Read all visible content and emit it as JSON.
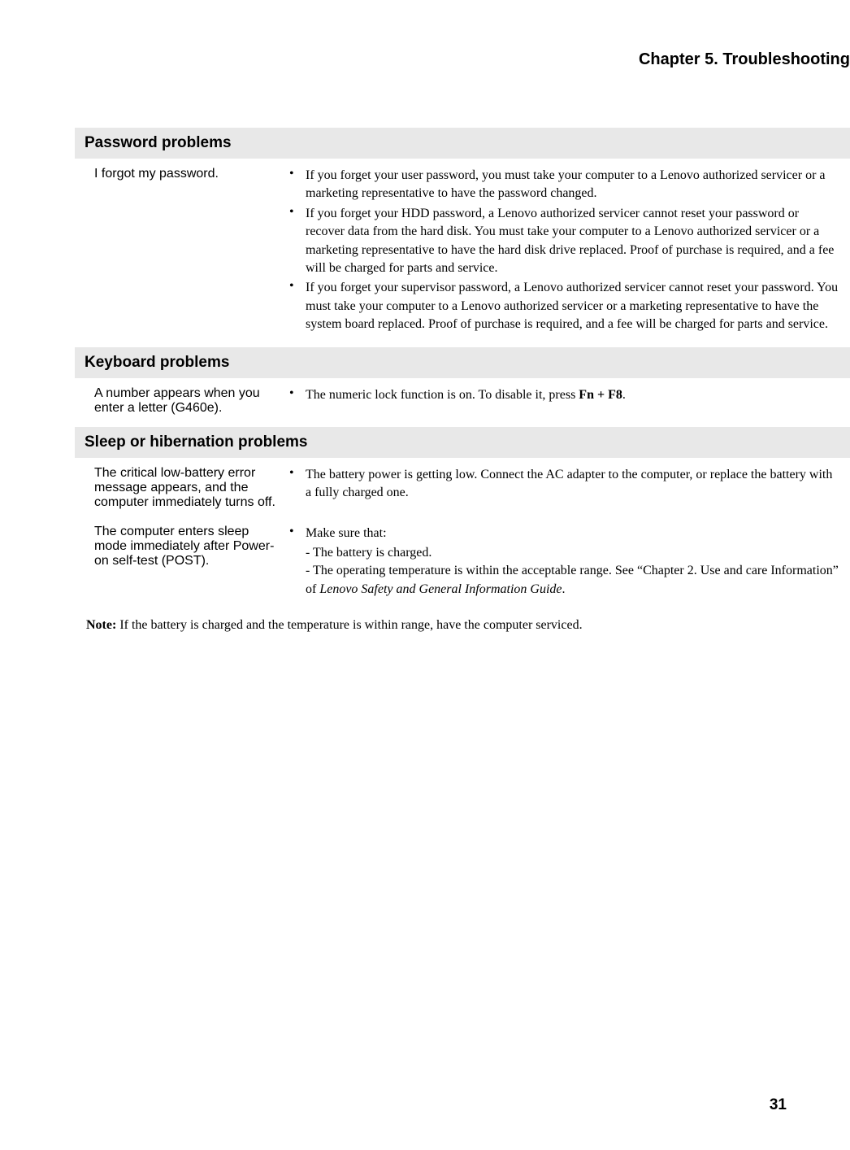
{
  "typography": {
    "chapter_fontsize": 20,
    "section_fontsize": 19,
    "left_fontsize": 16,
    "body_fontsize": 16,
    "pagenum_fontsize": 19,
    "section_bg": "#e8e8e8",
    "text_color": "#000000"
  },
  "chapter": "Chapter 5. Troubleshooting",
  "sections": [
    {
      "title": "Password problems",
      "rows": [
        {
          "left": "I forgot my password.",
          "bullets": [
            {
              "text": "If you forget your user password, you must take your computer to a Lenovo authorized servicer or a marketing representative to have the password changed."
            },
            {
              "text": "If you forget your HDD password, a Lenovo authorized servicer cannot reset your password or recover data from the hard disk. You must take your computer to a Lenovo authorized servicer or a marketing representative to have the hard disk drive replaced. Proof of purchase is required, and a fee will be charged for parts and service."
            },
            {
              "text": "If you forget your supervisor password, a Lenovo authorized servicer cannot reset your password. You must take your computer to a Lenovo authorized servicer or a marketing representative to have the system board replaced. Proof of purchase is required, and a fee will be charged for parts and service."
            }
          ]
        }
      ]
    },
    {
      "title": "Keyboard problems",
      "rows": [
        {
          "left": "A number appears when you enter a letter (G460e).",
          "bullets": [
            {
              "html": "The numeric lock function is on. To disable it, press <span class=\"bold\">Fn + F8</span>."
            }
          ]
        }
      ]
    },
    {
      "title": "Sleep or hibernation problems",
      "rows": [
        {
          "left": "The critical low-battery error message appears, and the computer immediately turns off.",
          "bullets": [
            {
              "text": "The battery power is getting low. Connect the AC adapter to the computer, or replace the battery with a fully charged one."
            }
          ]
        },
        {
          "left": "The computer enters sleep mode immediately after Power-on self-test (POST).",
          "bullets": [
            {
              "text": "Make sure that:",
              "subs": [
                {
                  "text": "- The battery is charged."
                },
                {
                  "html": "- The operating temperature is within the acceptable range. See “Chapter 2. Use and care Information” of <span class=\"italic\">Lenovo Safety and General Information Guide</span>."
                }
              ]
            }
          ]
        }
      ]
    }
  ],
  "note_label": "Note:",
  "note_text": " If the battery is charged and the temperature is within range, have the computer serviced.",
  "page_number": "31"
}
